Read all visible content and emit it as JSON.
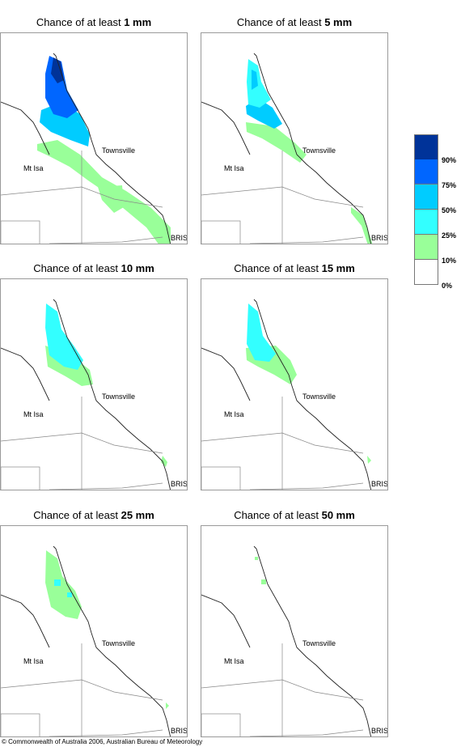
{
  "panels": [
    {
      "title_prefix": "Chance of at least ",
      "threshold": "1 mm"
    },
    {
      "title_prefix": "Chance of at least ",
      "threshold": "5 mm"
    },
    {
      "title_prefix": "Chance of at least ",
      "threshold": "10 mm"
    },
    {
      "title_prefix": "Chance of at least ",
      "threshold": "15 mm"
    },
    {
      "title_prefix": "Chance of at least ",
      "threshold": "25 mm"
    },
    {
      "title_prefix": "Chance of at least ",
      "threshold": "50 mm"
    }
  ],
  "places": {
    "townsville": "Townsville",
    "mt_isa": "Mt Isa",
    "brisbane": "BRIS"
  },
  "legend": {
    "ticks": [
      "90%",
      "75%",
      "50%",
      "25%",
      "10%",
      "0%"
    ],
    "colors": [
      "#003399",
      "#0066ff",
      "#00ccff",
      "#33ffff",
      "#99ff99",
      "#ffffff"
    ]
  },
  "copyright": "© Commonwealth of Australia 2006, Australian Bureau of Meteorology"
}
